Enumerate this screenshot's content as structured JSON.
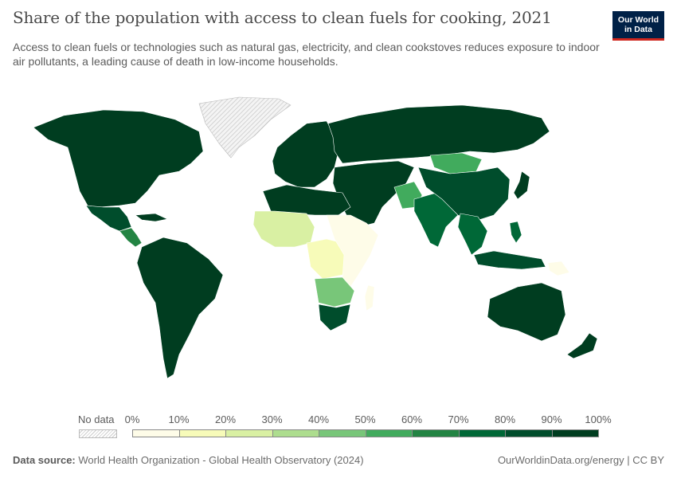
{
  "header": {
    "title": "Share of the population with access to clean fuels for cooking, 2021",
    "subtitle": "Access to clean fuels or technologies such as natural gas, electricity, and clean cookstoves reduces exposure to indoor air pollutants, a leading cause of death in low-income households."
  },
  "logo": {
    "line1": "Our World",
    "line2": "in Data",
    "bg": "#002147",
    "accent": "#ce261e"
  },
  "legend": {
    "no_data_label": "No data",
    "tick_labels": [
      "0%",
      "10%",
      "20%",
      "30%",
      "40%",
      "50%",
      "60%",
      "70%",
      "80%",
      "90%",
      "100%"
    ],
    "colors": [
      "#fefce8",
      "#f7fbb9",
      "#d9f0a3",
      "#addd8e",
      "#78c679",
      "#41ab5d",
      "#238443",
      "#006837",
      "#004d2c",
      "#003d20"
    ]
  },
  "chart_data": {
    "type": "choropleth",
    "title": "Share of the population with access to clean fuels for cooking, 2021",
    "unit": "%",
    "bins": [
      0,
      10,
      20,
      30,
      40,
      50,
      60,
      70,
      80,
      90,
      100
    ],
    "regions": [
      {
        "name": "North America",
        "value": 100
      },
      {
        "name": "Greenland",
        "value": null
      },
      {
        "name": "Mexico",
        "value": 85
      },
      {
        "name": "Central America",
        "value": 60
      },
      {
        "name": "South America",
        "value": 90
      },
      {
        "name": "Europe",
        "value": 100
      },
      {
        "name": "Russia",
        "value": 90
      },
      {
        "name": "Middle East",
        "value": 98
      },
      {
        "name": "North Africa",
        "value": 99
      },
      {
        "name": "West Africa",
        "value": 20
      },
      {
        "name": "Central Africa",
        "value": 10
      },
      {
        "name": "East Africa",
        "value": 5
      },
      {
        "name": "Southern Africa",
        "value": 40
      },
      {
        "name": "South Africa",
        "value": 88
      },
      {
        "name": "India",
        "value": 70
      },
      {
        "name": "Pakistan",
        "value": 50
      },
      {
        "name": "China",
        "value": 85
      },
      {
        "name": "Mongolia",
        "value": 55
      },
      {
        "name": "Southeast Asia",
        "value": 75
      },
      {
        "name": "Indonesia",
        "value": 88
      },
      {
        "name": "Australia",
        "value": 100
      },
      {
        "name": "New Zealand",
        "value": 100
      },
      {
        "name": "Japan",
        "value": 100
      },
      {
        "name": "Papua New Guinea",
        "value": 8
      },
      {
        "name": "Madagascar",
        "value": 1
      }
    ]
  },
  "footer": {
    "source_prefix": "Data source:",
    "source": "World Health Organization - Global Health Observatory (2024)",
    "link": "OurWorldinData.org/energy | CC BY"
  }
}
